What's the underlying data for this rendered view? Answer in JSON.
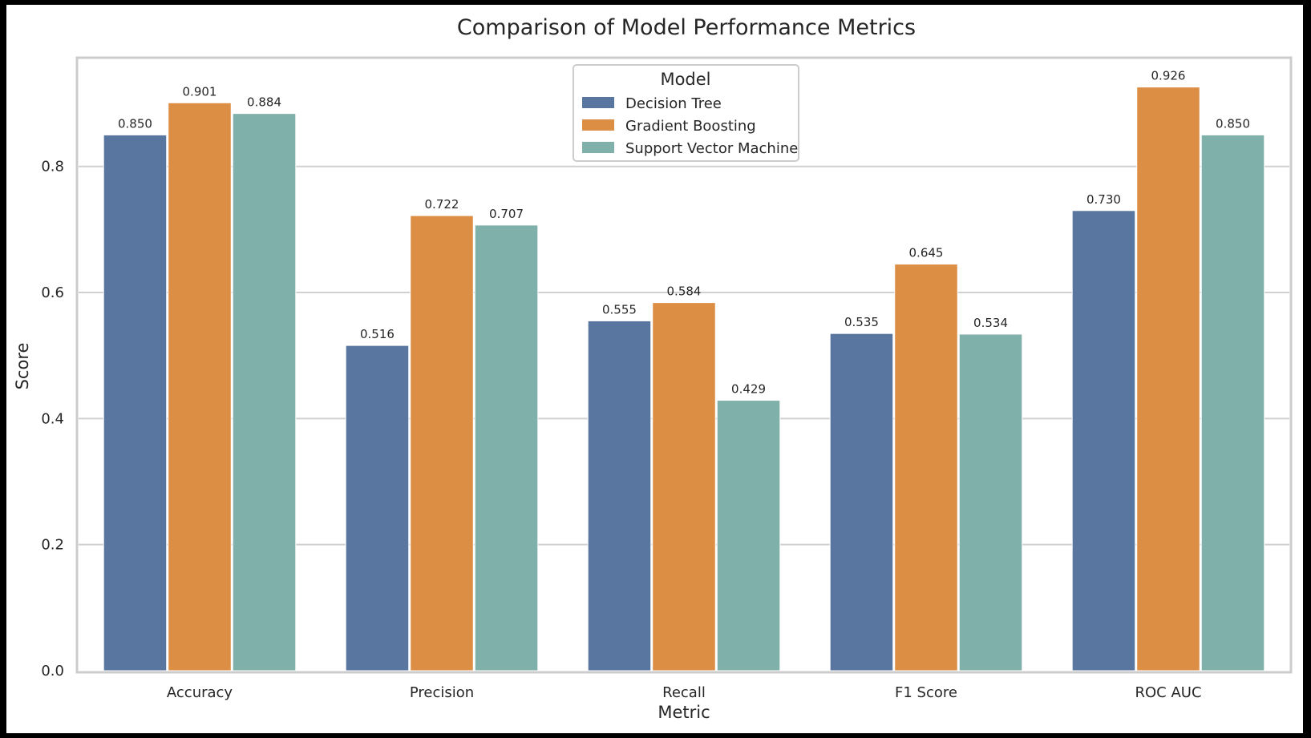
{
  "chart_data": {
    "type": "bar",
    "title": "Comparison of Model Performance Metrics",
    "xlabel": "Metric",
    "ylabel": "Score",
    "categories": [
      "Accuracy",
      "Precision",
      "Recall",
      "F1 Score",
      "ROC AUC"
    ],
    "ylim": [
      0,
      0.97
    ],
    "yticks": [
      0.0,
      0.2,
      0.4,
      0.6,
      0.8
    ],
    "ytick_labels": [
      "0.0",
      "0.2",
      "0.4",
      "0.6",
      "0.8"
    ],
    "grid": true,
    "legend": {
      "title": "Model",
      "placement": "top-center"
    },
    "series": [
      {
        "name": "Decision Tree",
        "color": "#5876a0",
        "values": [
          0.85,
          0.516,
          0.555,
          0.535,
          0.73
        ],
        "labels": [
          "0.850",
          "0.516",
          "0.555",
          "0.535",
          "0.730"
        ]
      },
      {
        "name": "Gradient Boosting",
        "color": "#db8e44",
        "values": [
          0.901,
          0.722,
          0.584,
          0.645,
          0.926
        ],
        "labels": [
          "0.901",
          "0.722",
          "0.584",
          "0.645",
          "0.926"
        ]
      },
      {
        "name": "Support Vector Machine",
        "color": "#7fb0a9",
        "values": [
          0.884,
          0.707,
          0.429,
          0.534,
          0.85
        ],
        "labels": [
          "0.884",
          "0.707",
          "0.429",
          "0.534",
          "0.850"
        ]
      }
    ]
  }
}
